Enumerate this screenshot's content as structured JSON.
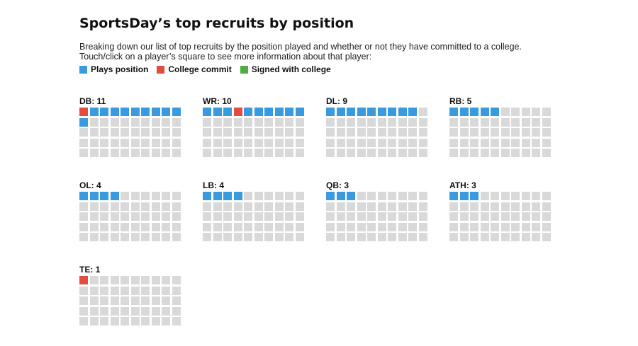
{
  "title": "SportsDay’s top recruits by position",
  "intro_line1": "Breaking down our list of top recruits by the position played and whether or not they have committed to a college.",
  "intro_line2": "Touch/click on a player’s square to see more information about that player:",
  "legend": [
    {
      "label": "Plays position",
      "color": "#3a9ae0"
    },
    {
      "label": "College commit",
      "color": "#e14d3f"
    },
    {
      "label": "Signed with college",
      "color": "#4caf3f"
    }
  ],
  "chart_data": {
    "type": "waffle",
    "squares_per_position": 50,
    "positions": [
      {
        "label": "DB: 11",
        "position": "DB",
        "count": 11,
        "commit_indices": [
          0
        ],
        "signed_indices": []
      },
      {
        "label": "WR: 10",
        "position": "WR",
        "count": 10,
        "commit_indices": [
          3
        ],
        "signed_indices": []
      },
      {
        "label": "DL: 9",
        "position": "DL",
        "count": 9,
        "commit_indices": [],
        "signed_indices": []
      },
      {
        "label": "RB: 5",
        "position": "RB",
        "count": 5,
        "commit_indices": [],
        "signed_indices": []
      },
      {
        "label": "OL: 4",
        "position": "OL",
        "count": 4,
        "commit_indices": [],
        "signed_indices": []
      },
      {
        "label": "LB: 4",
        "position": "LB",
        "count": 4,
        "commit_indices": [],
        "signed_indices": []
      },
      {
        "label": "QB: 3",
        "position": "QB",
        "count": 3,
        "commit_indices": [],
        "signed_indices": []
      },
      {
        "label": "ATH: 3",
        "position": "ATH",
        "count": 3,
        "commit_indices": [],
        "signed_indices": []
      },
      {
        "label": "TE: 1",
        "position": "TE",
        "count": 1,
        "commit_indices": [
          0
        ],
        "signed_indices": []
      }
    ]
  }
}
